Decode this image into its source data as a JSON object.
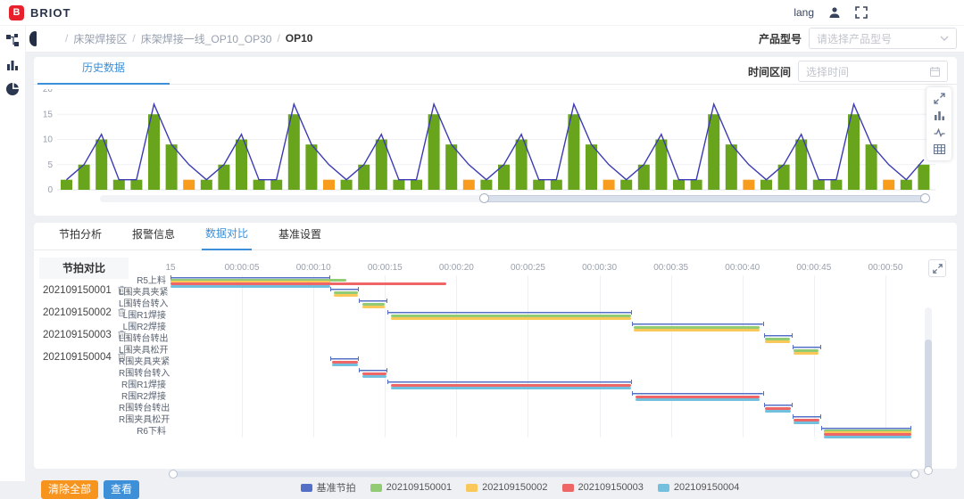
{
  "header": {
    "brand": "BRIOT",
    "logo_glyph": "B",
    "lang_label": "lang"
  },
  "breadcrumb": {
    "items": [
      "床架焊接区",
      "床架焊接一线_OP10_OP30",
      "OP10"
    ],
    "separator": "/"
  },
  "product_selector": {
    "label": "产品型号",
    "placeholder": "请选择产品型号"
  },
  "history_panel": {
    "tab": "历史数据",
    "time_label": "时间区间",
    "time_placeholder": "选择时间"
  },
  "compare_panel": {
    "tabs": [
      "节拍分析",
      "报警信息",
      "数据对比",
      "基准设置"
    ],
    "active_tab": "数据对比",
    "list_title": "节拍对比",
    "list_items": [
      "202109150001",
      "202109150002",
      "202109150003",
      "202109150004"
    ],
    "buttons": {
      "clear": "清除全部",
      "view": "查看"
    },
    "legend": [
      {
        "label": "基准节拍",
        "color": "#5470c6"
      },
      {
        "label": "202109150001",
        "color": "#91cc75"
      },
      {
        "label": "202109150002",
        "color": "#fac858"
      },
      {
        "label": "202109150003",
        "color": "#ee6666"
      },
      {
        "label": "202109150004",
        "color": "#73c0de"
      }
    ]
  },
  "chart_data": [
    {
      "type": "bar",
      "title": "历史数据 (bar + line overlay)",
      "ylim": [
        0,
        20
      ],
      "yticks": [
        0,
        5,
        10,
        15,
        20
      ],
      "grid": true,
      "bar_color_default": "#68a51d",
      "bar_color_highlight": "#f89c1e",
      "line_color": "#3b3bb3",
      "values": [
        2,
        5,
        10,
        2,
        2,
        15,
        9,
        2,
        2,
        5,
        10,
        2,
        2,
        15,
        9,
        2,
        2,
        5,
        10,
        2,
        2,
        15,
        9,
        2,
        2,
        5,
        10,
        2,
        2,
        15,
        9,
        2,
        2,
        5,
        10,
        2,
        2,
        15,
        9,
        2,
        2,
        5,
        10,
        2,
        2,
        15,
        9,
        2,
        2,
        5
      ],
      "highlight_indices": [
        7,
        15,
        23,
        31,
        39,
        47
      ],
      "line_values": [
        2,
        5,
        11,
        2,
        2,
        17,
        9,
        5,
        2,
        5,
        11,
        2,
        2,
        17,
        9,
        5,
        2,
        5,
        11,
        2,
        2,
        17,
        9,
        5,
        2,
        5,
        11,
        2,
        2,
        17,
        9,
        5,
        2,
        5,
        11,
        2,
        2,
        17,
        9,
        5,
        2,
        5,
        11,
        2,
        2,
        17,
        9,
        5,
        2,
        6
      ]
    },
    {
      "type": "gantt",
      "title": "节拍对比甘特图",
      "xlabels": [
        "15",
        "00:00:05",
        "00:00:10",
        "00:00:15",
        "00:00:20",
        "00:00:25",
        "00:00:30",
        "00:00:35",
        "00:00:40",
        "00:00:45",
        "00:00:50"
      ],
      "x_seconds": [
        0,
        5,
        10,
        15,
        20,
        25,
        30,
        35,
        40,
        45,
        50
      ],
      "xmax": 52.5,
      "series": {
        "base": {
          "name": "基准节拍",
          "color": "#5470c6"
        },
        "v1": {
          "name": "202109150001",
          "color": "#91cc75"
        },
        "v2": {
          "name": "202109150002",
          "color": "#fac858"
        },
        "v3": {
          "name": "202109150003",
          "color": "#ee6666"
        },
        "v4": {
          "name": "202109150004",
          "color": "#73c0de"
        }
      },
      "rows": [
        {
          "label": "R5上料",
          "bars": [
            [
              "base",
              0,
              11.2
            ],
            [
              "v1",
              0,
              12.3
            ],
            [
              "v2",
              0,
              11.2
            ],
            [
              "v3",
              0,
              19.3
            ],
            [
              "v4",
              0,
              11.2
            ]
          ]
        },
        {
          "label": "L围夹具夹紧",
          "bars": [
            [
              "base",
              11.2,
              13.2
            ],
            [
              "v1",
              11.4,
              13.1
            ],
            [
              "v2",
              11.4,
              13.1
            ]
          ]
        },
        {
          "label": "L围转台转入",
          "bars": [
            [
              "base",
              13.2,
              15.2
            ],
            [
              "v1",
              13.4,
              15.0
            ],
            [
              "v2",
              13.4,
              15.0
            ]
          ]
        },
        {
          "label": "L围R1焊接",
          "bars": [
            [
              "base",
              15.2,
              32.3
            ],
            [
              "v1",
              15.4,
              32.2
            ],
            [
              "v2",
              15.4,
              32.2
            ]
          ]
        },
        {
          "label": "L围R2焊接",
          "bars": [
            [
              "base",
              32.3,
              41.5
            ],
            [
              "v1",
              32.4,
              41.2
            ],
            [
              "v2",
              32.4,
              41.2
            ]
          ]
        },
        {
          "label": "L围转台转出",
          "bars": [
            [
              "base",
              41.5,
              43.5
            ],
            [
              "v1",
              41.6,
              43.3
            ],
            [
              "v2",
              41.6,
              43.3
            ]
          ]
        },
        {
          "label": "L围夹具松开",
          "bars": [
            [
              "base",
              43.5,
              45.5
            ],
            [
              "v1",
              43.6,
              45.3
            ],
            [
              "v2",
              43.6,
              45.3
            ]
          ]
        },
        {
          "label": "R围夹具夹紧",
          "bars": [
            [
              "base",
              11.2,
              13.2
            ],
            [
              "v3",
              11.3,
              13.1
            ],
            [
              "v4",
              11.3,
              13.1
            ]
          ]
        },
        {
          "label": "R围转台转入",
          "bars": [
            [
              "base",
              13.2,
              15.2
            ],
            [
              "v3",
              13.4,
              15.1
            ],
            [
              "v4",
              13.4,
              15.1
            ]
          ]
        },
        {
          "label": "R围R1焊接",
          "bars": [
            [
              "base",
              15.2,
              32.3
            ],
            [
              "v3",
              15.4,
              32.2
            ],
            [
              "v4",
              15.4,
              32.2
            ]
          ]
        },
        {
          "label": "R围R2焊接",
          "bars": [
            [
              "base",
              32.3,
              41.5
            ],
            [
              "v3",
              32.5,
              41.2
            ],
            [
              "v4",
              32.5,
              41.2
            ]
          ]
        },
        {
          "label": "R围转台转出",
          "bars": [
            [
              "base",
              41.5,
              43.5
            ],
            [
              "v3",
              41.6,
              43.4
            ],
            [
              "v4",
              41.6,
              43.4
            ]
          ]
        },
        {
          "label": "R围夹具松开",
          "bars": [
            [
              "base",
              43.5,
              45.5
            ],
            [
              "v3",
              43.6,
              45.4
            ],
            [
              "v4",
              43.6,
              45.4
            ]
          ]
        },
        {
          "label": "R6下料",
          "bars": [
            [
              "base",
              45.5,
              51.8
            ],
            [
              "v1",
              45.7,
              51.8
            ],
            [
              "v2",
              45.7,
              51.8
            ],
            [
              "v3",
              45.7,
              51.8
            ],
            [
              "v4",
              45.7,
              51.8
            ]
          ]
        }
      ]
    }
  ]
}
